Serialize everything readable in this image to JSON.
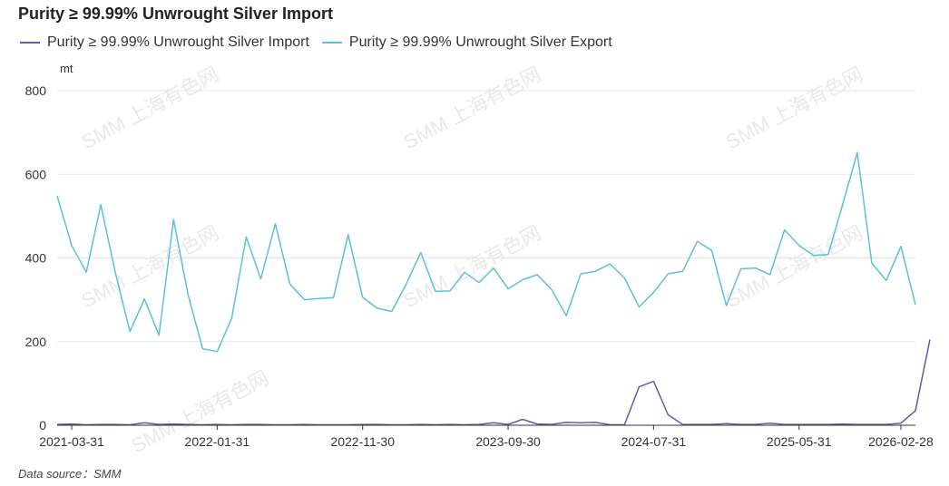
{
  "title": "Purity ≥ 99.99% Unwrought Silver Import",
  "unit": "mt",
  "source": "Data source：SMM",
  "watermark": "SMM 上海有色网",
  "colors": {
    "import": "#5a5fa8",
    "export": "#5bc0d8",
    "grid": "#e6e6e6",
    "axis": "#333333"
  },
  "chart_data": {
    "type": "line",
    "title": "Purity ≥ 99.99% Unwrought Silver Import",
    "ylabel": "mt",
    "ylim": [
      0,
      800
    ],
    "yticks": [
      0,
      200,
      400,
      600,
      800
    ],
    "xtick_labels": [
      "2021-03-31",
      "2022-01-31",
      "2022-11-30",
      "2023-09-30",
      "2024-07-31",
      "2025-05-31",
      "2026-02-28"
    ],
    "xtick_indices": [
      1,
      11,
      21,
      31,
      41,
      51,
      58
    ],
    "grid": true,
    "legend_position": "top-left",
    "series": [
      {
        "name": "Purity ≥ 99.99% Unwrought Silver Import",
        "color": "#5a5fa8",
        "values": [
          2,
          3,
          1,
          2,
          2,
          1,
          6,
          2,
          3,
          2,
          1,
          2,
          1,
          2,
          2,
          1,
          1,
          2,
          1,
          1,
          1,
          2,
          2,
          1,
          1,
          2,
          1,
          2,
          1,
          2,
          6,
          2,
          14,
          3,
          2,
          7,
          6,
          7,
          1,
          1,
          92,
          105,
          25,
          2,
          2,
          2,
          4,
          2,
          2,
          5,
          2,
          2,
          2,
          2,
          3,
          2,
          2,
          2,
          5,
          35,
          205
        ]
      },
      {
        "name": "Purity ≥ 99.99% Unwrought Silver Export",
        "color": "#5bc0d8",
        "values": [
          548,
          430,
          366,
          527,
          365,
          224,
          302,
          215,
          492,
          312,
          183,
          176,
          256,
          450,
          350,
          482,
          338,
          300,
          303,
          305,
          456,
          306,
          280,
          272,
          338,
          413,
          320,
          321,
          366,
          341,
          376,
          326,
          348,
          360,
          324,
          262,
          362,
          368,
          386,
          352,
          283,
          318,
          362,
          368,
          440,
          418,
          286,
          374,
          376,
          360,
          467,
          430,
          406,
          408,
          528,
          652,
          388,
          346,
          428,
          288
        ]
      }
    ]
  }
}
